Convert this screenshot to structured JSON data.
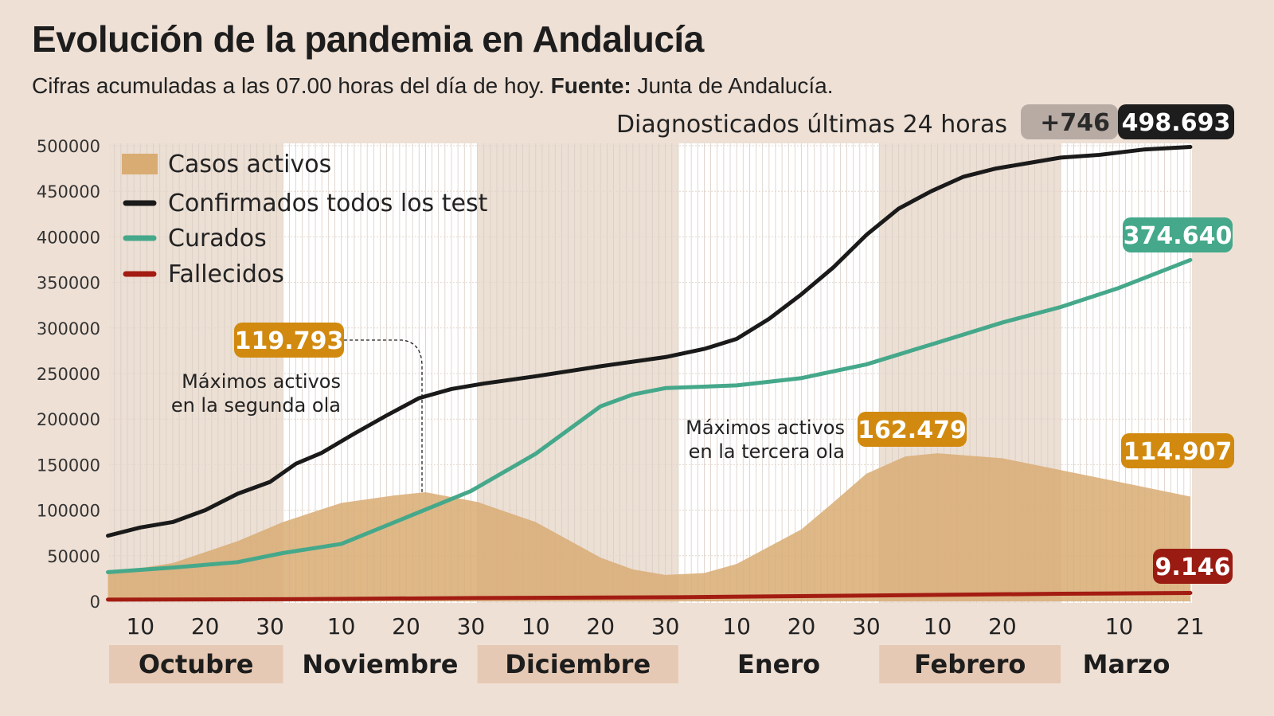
{
  "header": {
    "title": "Evolución de la pandemia en Andalucía",
    "subtitle_prefix": "Cifras acumuladas a las 07.00 horas del día de hoy. ",
    "subtitle_source_label": "Fuente:",
    "subtitle_source": " Junta de Andalucía."
  },
  "chart_data": {
    "type": "line",
    "title": "Evolución de la pandemia en Andalucía",
    "xlabel": "",
    "ylabel": "",
    "ylim": [
      0,
      500000
    ],
    "yticks": [
      0,
      50000,
      100000,
      150000,
      200000,
      250000,
      300000,
      350000,
      400000,
      450000,
      500000
    ],
    "xlim": [
      "2020-10-01",
      "2021-03-21"
    ],
    "grid": true,
    "legend_position": "top-left",
    "x_tick_labels": [
      {
        "date": "2020-10-10",
        "label": "10"
      },
      {
        "date": "2020-10-20",
        "label": "20"
      },
      {
        "date": "2020-10-30",
        "label": "30"
      },
      {
        "date": "2020-11-10",
        "label": "10"
      },
      {
        "date": "2020-11-20",
        "label": "20"
      },
      {
        "date": "2020-11-30",
        "label": "30"
      },
      {
        "date": "2020-12-10",
        "label": "10"
      },
      {
        "date": "2020-12-20",
        "label": "20"
      },
      {
        "date": "2020-12-30",
        "label": "30"
      },
      {
        "date": "2021-01-10",
        "label": "10"
      },
      {
        "date": "2021-01-20",
        "label": "20"
      },
      {
        "date": "2021-01-30",
        "label": "30"
      },
      {
        "date": "2021-02-10",
        "label": "10"
      },
      {
        "date": "2021-02-20",
        "label": "20"
      },
      {
        "date": "2021-03-10",
        "label": "10"
      },
      {
        "date": "2021-03-21",
        "label": "21",
        "bold": true
      }
    ],
    "months": [
      {
        "label": "Octubre",
        "start": "2020-10-01",
        "end": "2020-11-01",
        "shaded": true
      },
      {
        "label": "Noviembre",
        "start": "2020-11-01",
        "end": "2020-12-01",
        "shaded": false
      },
      {
        "label": "Diciembre",
        "start": "2020-12-01",
        "end": "2021-01-01",
        "shaded": true
      },
      {
        "label": "Enero",
        "start": "2021-01-01",
        "end": "2021-02-01",
        "shaded": false
      },
      {
        "label": "Febrero",
        "start": "2021-02-01",
        "end": "2021-03-01",
        "shaded": true
      },
      {
        "label": "Marzo",
        "start": "2021-03-01",
        "end": "2021-03-22",
        "shaded": false
      }
    ],
    "series": [
      {
        "name": "Casos activos",
        "type": "area",
        "color": "#d9ac73",
        "points": [
          [
            "2020-10-05",
            31000
          ],
          [
            "2020-10-15",
            42000
          ],
          [
            "2020-10-25",
            66000
          ],
          [
            "2020-11-01",
            87000
          ],
          [
            "2020-11-10",
            108000
          ],
          [
            "2020-11-18",
            116000
          ],
          [
            "2020-11-23",
            119793
          ],
          [
            "2020-12-01",
            109000
          ],
          [
            "2020-12-10",
            87000
          ],
          [
            "2020-12-20",
            48000
          ],
          [
            "2020-12-25",
            35000
          ],
          [
            "2020-12-30",
            29000
          ],
          [
            "2021-01-05",
            31000
          ],
          [
            "2021-01-10",
            41000
          ],
          [
            "2021-01-20",
            79000
          ],
          [
            "2021-01-25",
            109000
          ],
          [
            "2021-01-30",
            140000
          ],
          [
            "2021-02-05",
            159000
          ],
          [
            "2021-02-10",
            162479
          ],
          [
            "2021-02-20",
            157000
          ],
          [
            "2021-03-01",
            144000
          ],
          [
            "2021-03-10",
            131000
          ],
          [
            "2021-03-21",
            114907
          ]
        ]
      },
      {
        "name": "Confirmados todos los test",
        "type": "line",
        "color": "#1a1a1a",
        "points": [
          [
            "2020-10-05",
            72000
          ],
          [
            "2020-10-10",
            81000
          ],
          [
            "2020-10-15",
            87000
          ],
          [
            "2020-10-20",
            100000
          ],
          [
            "2020-10-25",
            118000
          ],
          [
            "2020-10-30",
            131000
          ],
          [
            "2020-11-03",
            151000
          ],
          [
            "2020-11-07",
            163000
          ],
          [
            "2020-11-12",
            184000
          ],
          [
            "2020-11-17",
            204000
          ],
          [
            "2020-11-22",
            223000
          ],
          [
            "2020-11-27",
            233000
          ],
          [
            "2020-12-02",
            239000
          ],
          [
            "2020-12-10",
            247000
          ],
          [
            "2020-12-20",
            258000
          ],
          [
            "2020-12-30",
            268000
          ],
          [
            "2021-01-05",
            277000
          ],
          [
            "2021-01-10",
            288000
          ],
          [
            "2021-01-15",
            310000
          ],
          [
            "2021-01-20",
            337000
          ],
          [
            "2021-01-25",
            367000
          ],
          [
            "2021-01-30",
            402000
          ],
          [
            "2021-02-04",
            431000
          ],
          [
            "2021-02-09",
            450000
          ],
          [
            "2021-02-14",
            466000
          ],
          [
            "2021-02-19",
            475000
          ],
          [
            "2021-02-24",
            481000
          ],
          [
            "2021-03-01",
            487000
          ],
          [
            "2021-03-07",
            490000
          ],
          [
            "2021-03-14",
            496000
          ],
          [
            "2021-03-21",
            498693
          ]
        ]
      },
      {
        "name": "Curados",
        "type": "line",
        "color": "#45a88a",
        "points": [
          [
            "2020-10-05",
            32000
          ],
          [
            "2020-10-15",
            37000
          ],
          [
            "2020-10-25",
            43000
          ],
          [
            "2020-11-01",
            53000
          ],
          [
            "2020-11-10",
            63000
          ],
          [
            "2020-11-20",
            92000
          ],
          [
            "2020-11-30",
            121000
          ],
          [
            "2020-12-10",
            162000
          ],
          [
            "2020-12-20",
            214000
          ],
          [
            "2020-12-25",
            227000
          ],
          [
            "2020-12-30",
            234000
          ],
          [
            "2021-01-10",
            237000
          ],
          [
            "2021-01-20",
            245000
          ],
          [
            "2021-01-30",
            260000
          ],
          [
            "2021-02-10",
            284000
          ],
          [
            "2021-02-20",
            306000
          ],
          [
            "2021-03-01",
            323000
          ],
          [
            "2021-03-10",
            344000
          ],
          [
            "2021-03-21",
            374640
          ]
        ]
      },
      {
        "name": "Fallecidos",
        "type": "line",
        "color": "#a31c12",
        "points": [
          [
            "2020-10-05",
            1900
          ],
          [
            "2020-11-01",
            2300
          ],
          [
            "2020-12-01",
            3600
          ],
          [
            "2021-01-01",
            4500
          ],
          [
            "2021-02-01",
            6500
          ],
          [
            "2021-03-01",
            8300
          ],
          [
            "2021-03-21",
            9146
          ]
        ]
      }
    ],
    "end_labels": {
      "new_cases_caption": "Diagnosticados últimas 24 horas",
      "new_cases": "+746",
      "confirmados": "498.693",
      "curados": "374.640",
      "activos": "114.907",
      "fallecidos": "9.146"
    },
    "annotations": [
      {
        "value": "119.793",
        "text_line1": "Máximos activos",
        "text_line2": "en la segunda ola",
        "date": "2020-11-23"
      },
      {
        "value": "162.479",
        "text_line1": "Máximos activos",
        "text_line2": "en la tercera ola",
        "date": "2021-02-10"
      }
    ],
    "colors": {
      "background": "#eee0d5",
      "shaded_month": "#ecdfd4",
      "plain_month": "#ffffff",
      "month_label_bg": "#e6c9b4",
      "activos_box": "#d18a0f",
      "new_cases_box": "#b8aba4"
    }
  }
}
